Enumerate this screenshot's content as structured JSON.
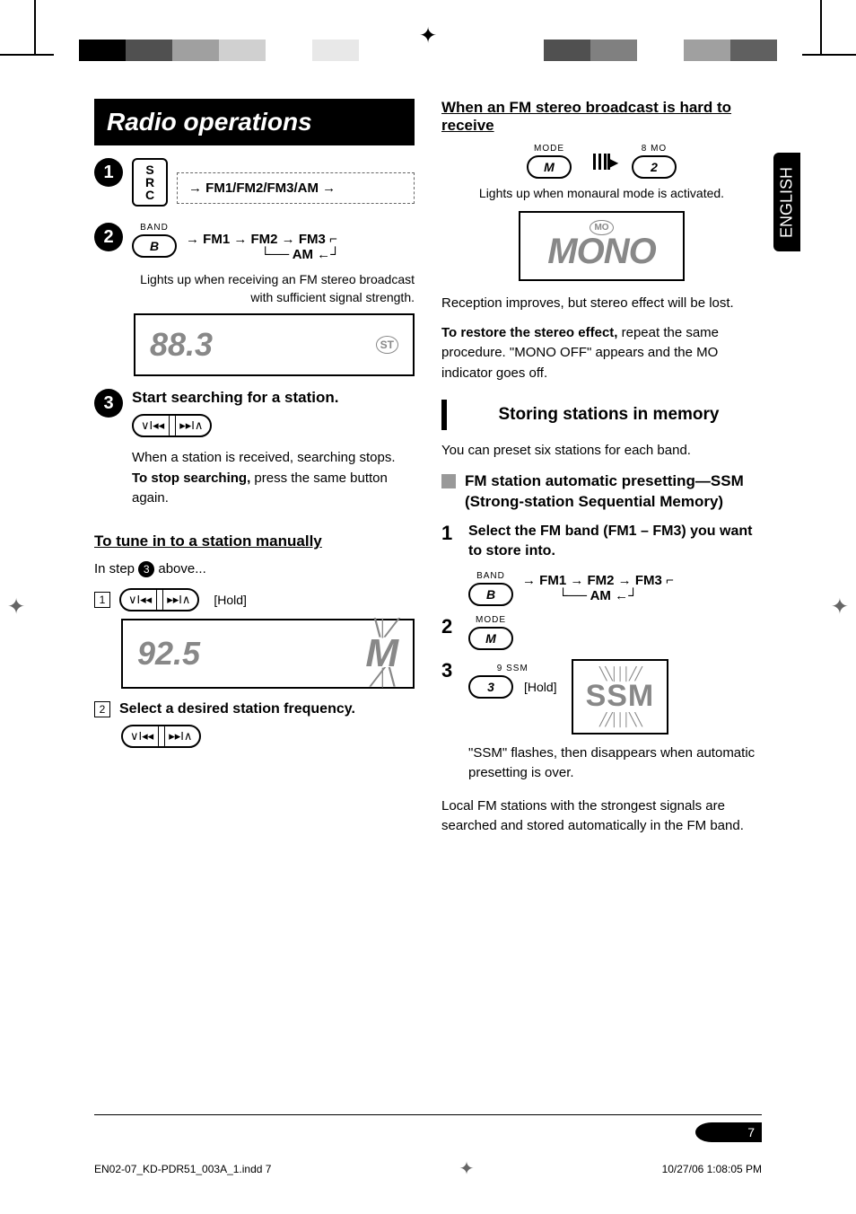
{
  "crop_colors_left": [
    "#000000",
    "#505050",
    "#a0a0a0",
    "#d0d0d0",
    "#ffffff",
    "#e8e8e8"
  ],
  "crop_colors_right": [
    "#ffffff",
    "#505050",
    "#808080",
    "#ffffff",
    "#a0a0a0",
    "#606060"
  ],
  "lang_tab": "ENGLISH",
  "title": "Radio operations",
  "step1": {
    "num": "1",
    "src": [
      "S",
      "R",
      "C"
    ],
    "cycle": "FM1/FM2/FM3/AM"
  },
  "step2": {
    "num": "2",
    "band_label": "BAND",
    "band_key": "B",
    "cycle_line1": "FM1 → FM2 → FM3",
    "cycle_line2": "AM",
    "caption": "Lights up when receiving an FM stereo broadcast with sufficient signal strength.",
    "freq": "88.3",
    "indicator": "ST"
  },
  "step3": {
    "num": "3",
    "heading": "Start searching for a station.",
    "btn_left": "∨I◂◂",
    "btn_right": "▸▸I∧",
    "text1": "When a station is received, searching stops.",
    "text2_bold": "To stop searching,",
    "text2_rest": " press the same button again."
  },
  "manual": {
    "heading": "To tune in to a station manually",
    "intro_pre": "In step ",
    "intro_post": " above...",
    "box1": "1",
    "hold": "[Hold]",
    "freq": "92.5",
    "m_indicator": "M",
    "box2": "2",
    "step2_text": "Select a desired station frequency."
  },
  "fm_hard": {
    "heading": "When an FM stereo broadcast is hard to receive",
    "mode_label": "MODE",
    "mode_key": "M",
    "mo_label": "8  MO",
    "mo_key": "2",
    "caption": "Lights up when monaural mode is activated.",
    "mo_ind": "MO",
    "mono": "MONO",
    "text1": "Reception improves, but stereo effect will be lost.",
    "text2_bold": "To restore the stereo effect,",
    "text2_rest": " repeat the same procedure. \"MONO OFF\" appears and the MO indicator goes off."
  },
  "storing": {
    "heading": "Storing stations in memory",
    "intro": "You can preset six stations for each band.",
    "ssm_heading": "FM station automatic presetting—SSM (Strong-station Sequential Memory)",
    "step1_num": "1",
    "step1_text": "Select the FM band (FM1 – FM3) you want to store into.",
    "band_label": "BAND",
    "band_key": "B",
    "cycle_line1": "FM1 → FM2 → FM3",
    "cycle_line2": "AM",
    "step2_num": "2",
    "mode_label": "MODE",
    "mode_key": "M",
    "step3_num": "3",
    "ssm_label": "9  SSM",
    "ssm_key": "3",
    "hold": "[Hold]",
    "ssm_display": "SSM",
    "ssm_caption": "\"SSM\" flashes, then disappears when automatic presetting is over.",
    "footer_text": "Local FM stations with the strongest signals are searched and stored automatically in the FM band."
  },
  "page_number": "7",
  "footer": {
    "filename": "EN02-07_KD-PDR51_003A_1.indd   7",
    "timestamp": "10/27/06   1:08:05 PM"
  }
}
